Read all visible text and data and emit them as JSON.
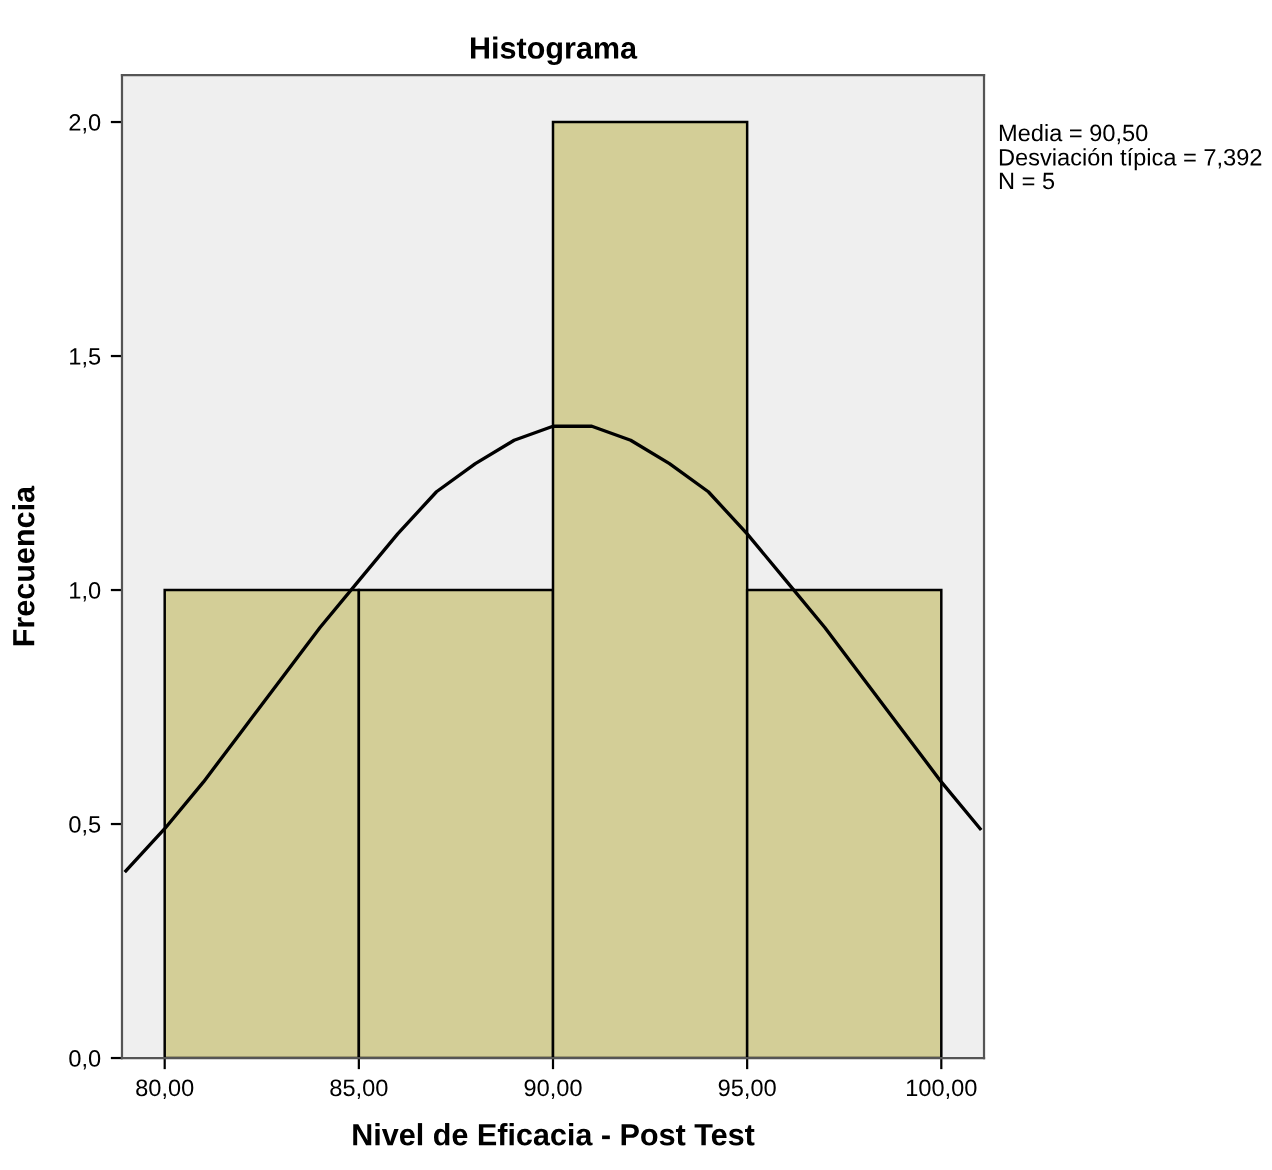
{
  "chart_data": {
    "type": "histogram",
    "title": "Histograma",
    "xlabel": "Nivel de Eficacia - Post Test",
    "ylabel": "Frecuencia",
    "bins": [
      80,
      85,
      90,
      95,
      100
    ],
    "values": [
      1,
      1,
      2,
      1
    ],
    "color": "#d3ce97",
    "series": [
      {
        "type": "line",
        "color": "#000000",
        "x": [
          79,
          80,
          81,
          82,
          83,
          84,
          85,
          86,
          87,
          88,
          89,
          90,
          90.5,
          91,
          92,
          93,
          94,
          95,
          96,
          97,
          98,
          99,
          100,
          101
        ],
        "values": [
          0.4,
          0.49,
          0.59,
          0.7,
          0.81,
          0.92,
          1.02,
          1.12,
          1.21,
          1.27,
          1.32,
          1.35,
          1.35,
          1.35,
          1.32,
          1.27,
          1.21,
          1.12,
          1.02,
          0.92,
          0.81,
          0.7,
          0.59,
          0.49
        ]
      }
    ],
    "xlim": [
      78.9,
      101.1
    ],
    "ylim": [
      0,
      2.1
    ],
    "xticks": [
      {
        "value": 80,
        "label": "80,00"
      },
      {
        "value": 85,
        "label": "85,00"
      },
      {
        "value": 90,
        "label": "90,00"
      },
      {
        "value": 95,
        "label": "95,00"
      },
      {
        "value": 100,
        "label": "100,00"
      }
    ],
    "yticks": [
      {
        "value": 0,
        "label": "0,0"
      },
      {
        "value": 0.5,
        "label": "0,5"
      },
      {
        "value": 1,
        "label": "1,0"
      },
      {
        "value": 1.5,
        "label": "1,5"
      },
      {
        "value": 2,
        "label": "2,0"
      }
    ],
    "annotations": [
      "Media = 90,50",
      "Desviación típica = 7,392",
      "N = 5"
    ],
    "grid": false,
    "legend": false
  }
}
